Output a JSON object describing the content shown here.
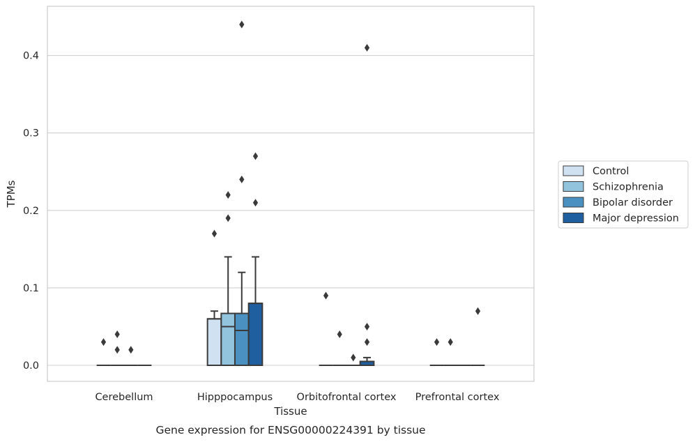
{
  "chart_data": {
    "type": "boxplot",
    "title": "Gene expression for ENSG00000224391 by tissue",
    "xlabel": "Tissue",
    "ylabel": "TPMs",
    "ylim": [
      -0.021,
      0.464
    ],
    "yticks": [
      "0.0",
      "0.1",
      "0.2",
      "0.3",
      "0.4"
    ],
    "ytick_values": [
      0.0,
      0.1,
      0.2,
      0.3,
      0.4
    ],
    "grid": true,
    "legend_placement": "right",
    "categories": [
      "Cerebellum",
      "Hipppocampus",
      "Orbitofrontal cortex",
      "Prefrontal cortex"
    ],
    "series": [
      {
        "name": "Control",
        "color": "#d0e1f1",
        "boxes": [
          {
            "q1": 0,
            "median": 0,
            "q3": 0,
            "whislo": 0,
            "whishi": 0,
            "fliers": [
              0.03
            ]
          },
          {
            "q1": 0,
            "median": 0.06,
            "q3": 0.06,
            "whislo": 0,
            "whishi": 0.07,
            "fliers": [
              0.17
            ]
          },
          {
            "q1": 0,
            "median": 0,
            "q3": 0,
            "whislo": 0,
            "whishi": 0,
            "fliers": [
              0.09
            ]
          },
          {
            "q1": 0,
            "median": 0,
            "q3": 0,
            "whislo": 0,
            "whishi": 0,
            "fliers": [
              0.03
            ]
          }
        ]
      },
      {
        "name": "Schizophrenia",
        "color": "#93c4de",
        "boxes": [
          {
            "q1": 0,
            "median": 0,
            "q3": 0,
            "whislo": 0,
            "whishi": 0,
            "fliers": [
              0.04,
              0.02
            ]
          },
          {
            "q1": 0,
            "median": 0.05,
            "q3": 0.067,
            "whislo": 0,
            "whishi": 0.14,
            "fliers": [
              0.19,
              0.22
            ]
          },
          {
            "q1": 0,
            "median": 0,
            "q3": 0,
            "whislo": 0,
            "whishi": 0,
            "fliers": [
              0.04
            ]
          },
          {
            "q1": 0,
            "median": 0,
            "q3": 0,
            "whislo": 0,
            "whishi": 0,
            "fliers": [
              0.03
            ]
          }
        ]
      },
      {
        "name": "Bipolar disorder",
        "color": "#4a90c0",
        "boxes": [
          {
            "q1": 0,
            "median": 0,
            "q3": 0,
            "whislo": 0,
            "whishi": 0,
            "fliers": [
              0.02
            ]
          },
          {
            "q1": 0,
            "median": 0.045,
            "q3": 0.067,
            "whislo": 0,
            "whishi": 0.12,
            "fliers": [
              0.24,
              0.44
            ]
          },
          {
            "q1": 0,
            "median": 0,
            "q3": 0,
            "whislo": 0,
            "whishi": 0,
            "fliers": [
              0.01
            ]
          },
          {
            "q1": 0,
            "median": 0,
            "q3": 0,
            "whislo": 0,
            "whishi": 0,
            "fliers": []
          }
        ]
      },
      {
        "name": "Major depression",
        "color": "#1f5fa0",
        "boxes": [
          {
            "q1": 0,
            "median": 0,
            "q3": 0,
            "whislo": 0,
            "whishi": 0,
            "fliers": []
          },
          {
            "q1": 0,
            "median": 0.08,
            "q3": 0.08,
            "whislo": 0,
            "whishi": 0.14,
            "fliers": [
              0.21,
              0.27
            ]
          },
          {
            "q1": 0,
            "median": 0,
            "q3": 0.005,
            "whislo": 0,
            "whishi": 0.01,
            "fliers": [
              0.03,
              0.05,
              0.41
            ]
          },
          {
            "q1": 0,
            "median": 0,
            "q3": 0,
            "whislo": 0,
            "whishi": 0,
            "fliers": [
              0.07
            ]
          }
        ]
      }
    ]
  }
}
